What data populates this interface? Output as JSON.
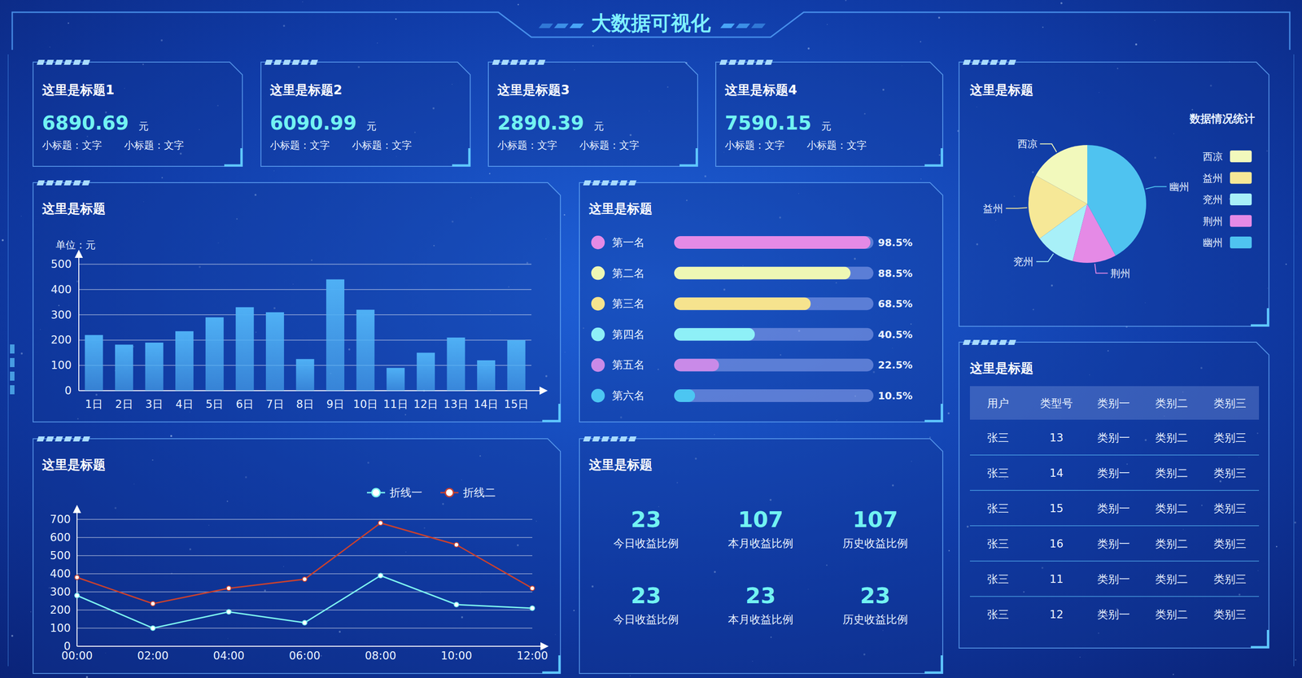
{
  "header": {
    "title": "大数据可视化"
  },
  "cards": [
    {
      "title": "这里是标题1",
      "value": 6890.69,
      "unit": "元",
      "notes": [
        "小标题：文字",
        "小标题：文字"
      ]
    },
    {
      "title": "这里是标题2",
      "value": 6090.99,
      "unit": "元",
      "notes": [
        "小标题：文字",
        "小标题：文字"
      ]
    },
    {
      "title": "这里是标题3",
      "value": 2890.39,
      "unit": "元",
      "notes": [
        "小标题：文字",
        "小标题：文字"
      ]
    },
    {
      "title": "这里是标题4",
      "value": 7590.15,
      "unit": "元",
      "notes": [
        "小标题：文字",
        "小标题：文字"
      ]
    }
  ],
  "chart_data": [
    {
      "type": "bar",
      "title": "这里是标题",
      "ylabel": "单位：元",
      "categories": [
        "1日",
        "2日",
        "3日",
        "4日",
        "5日",
        "6日",
        "7日",
        "8日",
        "9日",
        "10日",
        "11日",
        "12日",
        "13日",
        "14日",
        "15日"
      ],
      "values": [
        220,
        182,
        190,
        235,
        290,
        330,
        310,
        125,
        440,
        320,
        90,
        150,
        210,
        120,
        200
      ],
      "color": "#4fb0f5",
      "ylim": [
        0,
        500
      ],
      "yticks": [
        0,
        100,
        200,
        300,
        400,
        500
      ],
      "grid": true
    },
    {
      "type": "bar",
      "orientation": "horizontal",
      "title": "这里是标题",
      "categories": [
        "第一名",
        "第二名",
        "第三名",
        "第四名",
        "第五名",
        "第六名"
      ],
      "values": [
        98.5,
        88.5,
        68.5,
        40.5,
        22.5,
        10.5
      ],
      "value_labels": [
        "98.5%",
        "88.5%",
        "68.5%",
        "40.5%",
        "22.5%",
        "10.5%"
      ],
      "colors": [
        "#e58ae6",
        "#eef7b4",
        "#f6e38e",
        "#8ef0f7",
        "#c98ae8",
        "#4cc6f2"
      ],
      "xlim": [
        0,
        100
      ],
      "data_labels": true
    },
    {
      "type": "pie",
      "title": "这里是标题",
      "subtitle": "数据情况统计",
      "categories": [
        "西凉",
        "益州",
        "兖州",
        "荆州",
        "幽州"
      ],
      "values": [
        17,
        18,
        11,
        12,
        42
      ],
      "colors": [
        "#f2f9bc",
        "#f6e897",
        "#a8f0f8",
        "#e58ae6",
        "#4fc3f0"
      ],
      "legend": "right"
    },
    {
      "type": "line",
      "title": "这里是标题",
      "categories": [
        "00:00",
        "02:00",
        "04:00",
        "06:00",
        "08:00",
        "10:00",
        "12:00"
      ],
      "series": [
        {
          "name": "折线一",
          "color": "#7ef5f0",
          "values": [
            280,
            100,
            190,
            130,
            390,
            230,
            210
          ]
        },
        {
          "name": "折线二",
          "color": "#c9412e",
          "values": [
            380,
            235,
            320,
            370,
            680,
            560,
            320
          ]
        }
      ],
      "ylim": [
        0,
        700
      ],
      "yticks": [
        0,
        100,
        200,
        300,
        400,
        500,
        600,
        700
      ],
      "grid": true,
      "legend": "top",
      "marker": "circle"
    }
  ],
  "stats": {
    "title": "这里是标题",
    "items": [
      {
        "value": 23,
        "label": "今日收益比例"
      },
      {
        "value": 107,
        "label": "本月收益比例"
      },
      {
        "value": 107,
        "label": "历史收益比例"
      },
      {
        "value": 23,
        "label": "今日收益比例"
      },
      {
        "value": 23,
        "label": "本月收益比例"
      },
      {
        "value": 23,
        "label": "历史收益比例"
      }
    ]
  },
  "table": {
    "title": "这里是标题",
    "header": [
      "用户",
      "类型号",
      "类别一",
      "类别二",
      "类别三"
    ],
    "rows": [
      [
        "张三",
        13,
        "类别一",
        "类别二",
        "类别三"
      ],
      [
        "张三",
        14,
        "类别一",
        "类别二",
        "类别三"
      ],
      [
        "张三",
        15,
        "类别一",
        "类别二",
        "类别三"
      ],
      [
        "张三",
        16,
        "类别一",
        "类别二",
        "类别三"
      ],
      [
        "张三",
        11,
        "类别一",
        "类别二",
        "类别三"
      ],
      [
        "张三",
        12,
        "类别一",
        "类别二",
        "类别三"
      ]
    ]
  }
}
